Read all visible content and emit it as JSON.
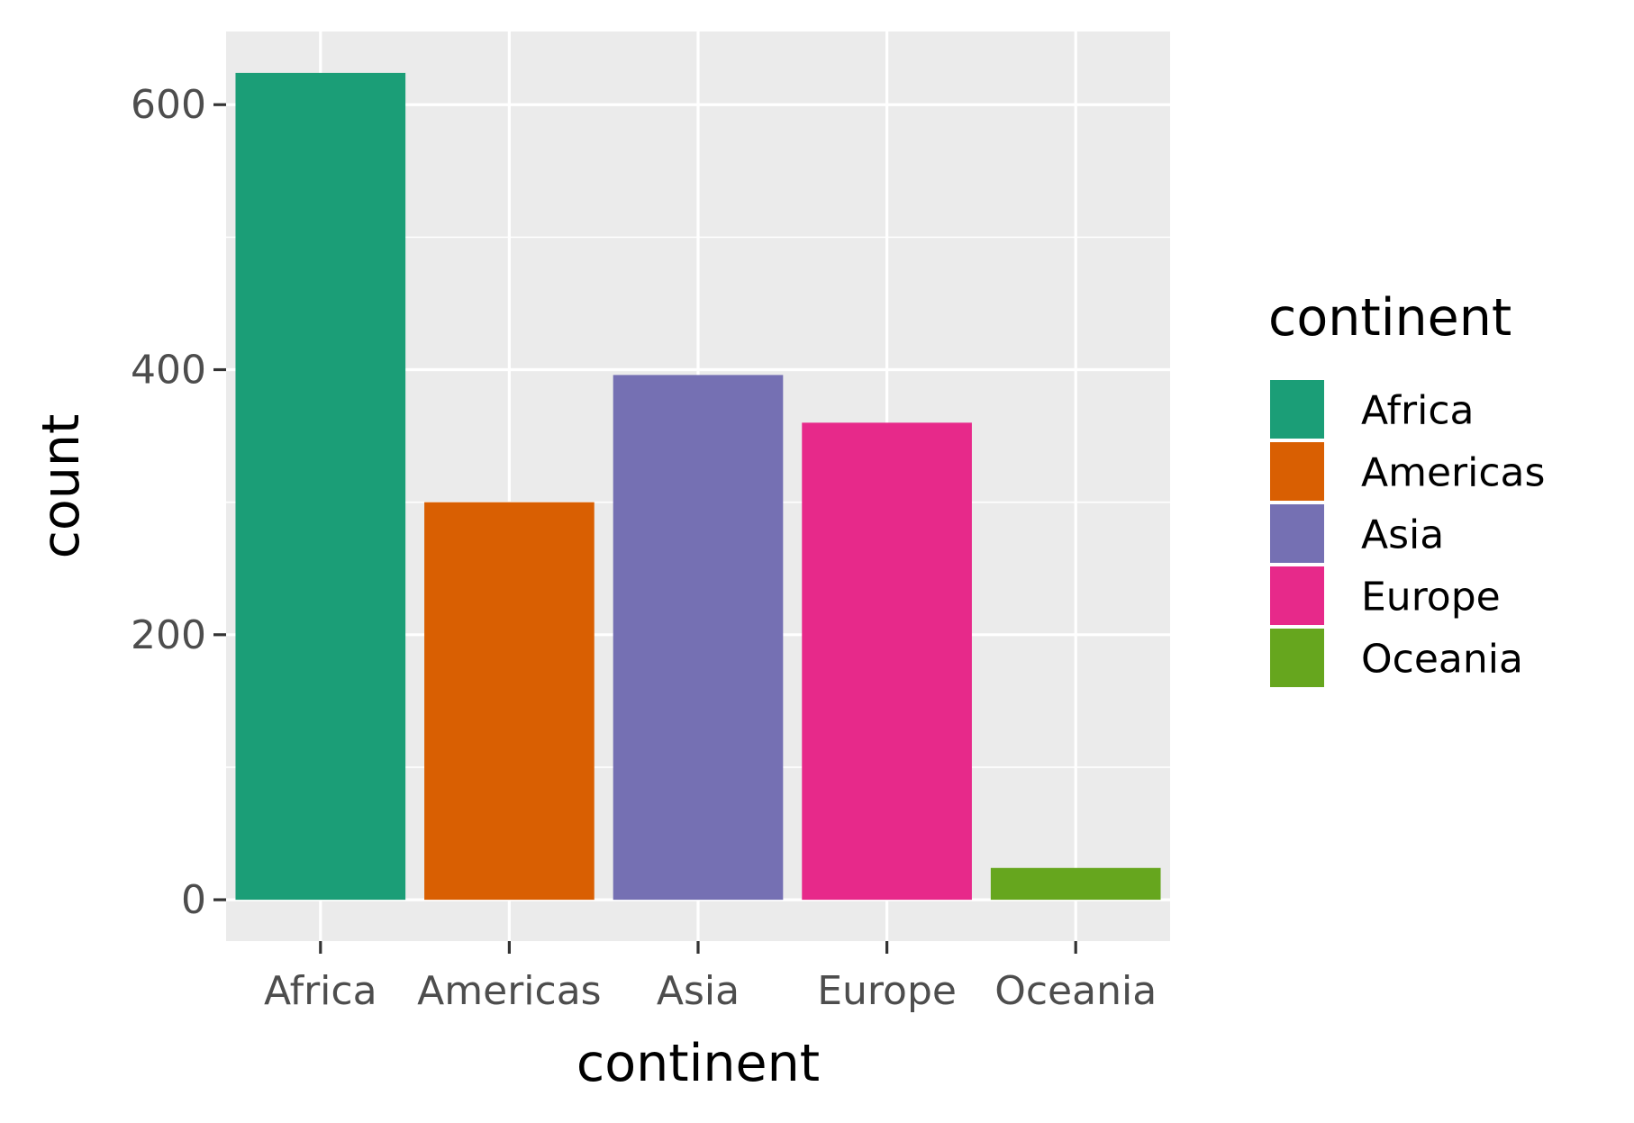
{
  "chart_data": {
    "type": "bar",
    "categories": [
      "Africa",
      "Americas",
      "Asia",
      "Europe",
      "Oceania"
    ],
    "values": [
      624,
      300,
      396,
      360,
      24
    ],
    "colors": [
      "#1b9e77",
      "#d95f02",
      "#7570b3",
      "#e7298a",
      "#66a61e"
    ],
    "xlabel": "continent",
    "ylabel": "count",
    "ylim": [
      -31.2,
      655.2
    ],
    "y_ticks": [
      0,
      200,
      400,
      600
    ],
    "y_tick_labels": [
      "0",
      "200",
      "400",
      "600"
    ],
    "grid": true,
    "panel_background": "#ebebeb",
    "legend": {
      "title": "continent",
      "placement": "right",
      "entries": [
        "Africa",
        "Americas",
        "Asia",
        "Europe",
        "Oceania"
      ]
    }
  }
}
